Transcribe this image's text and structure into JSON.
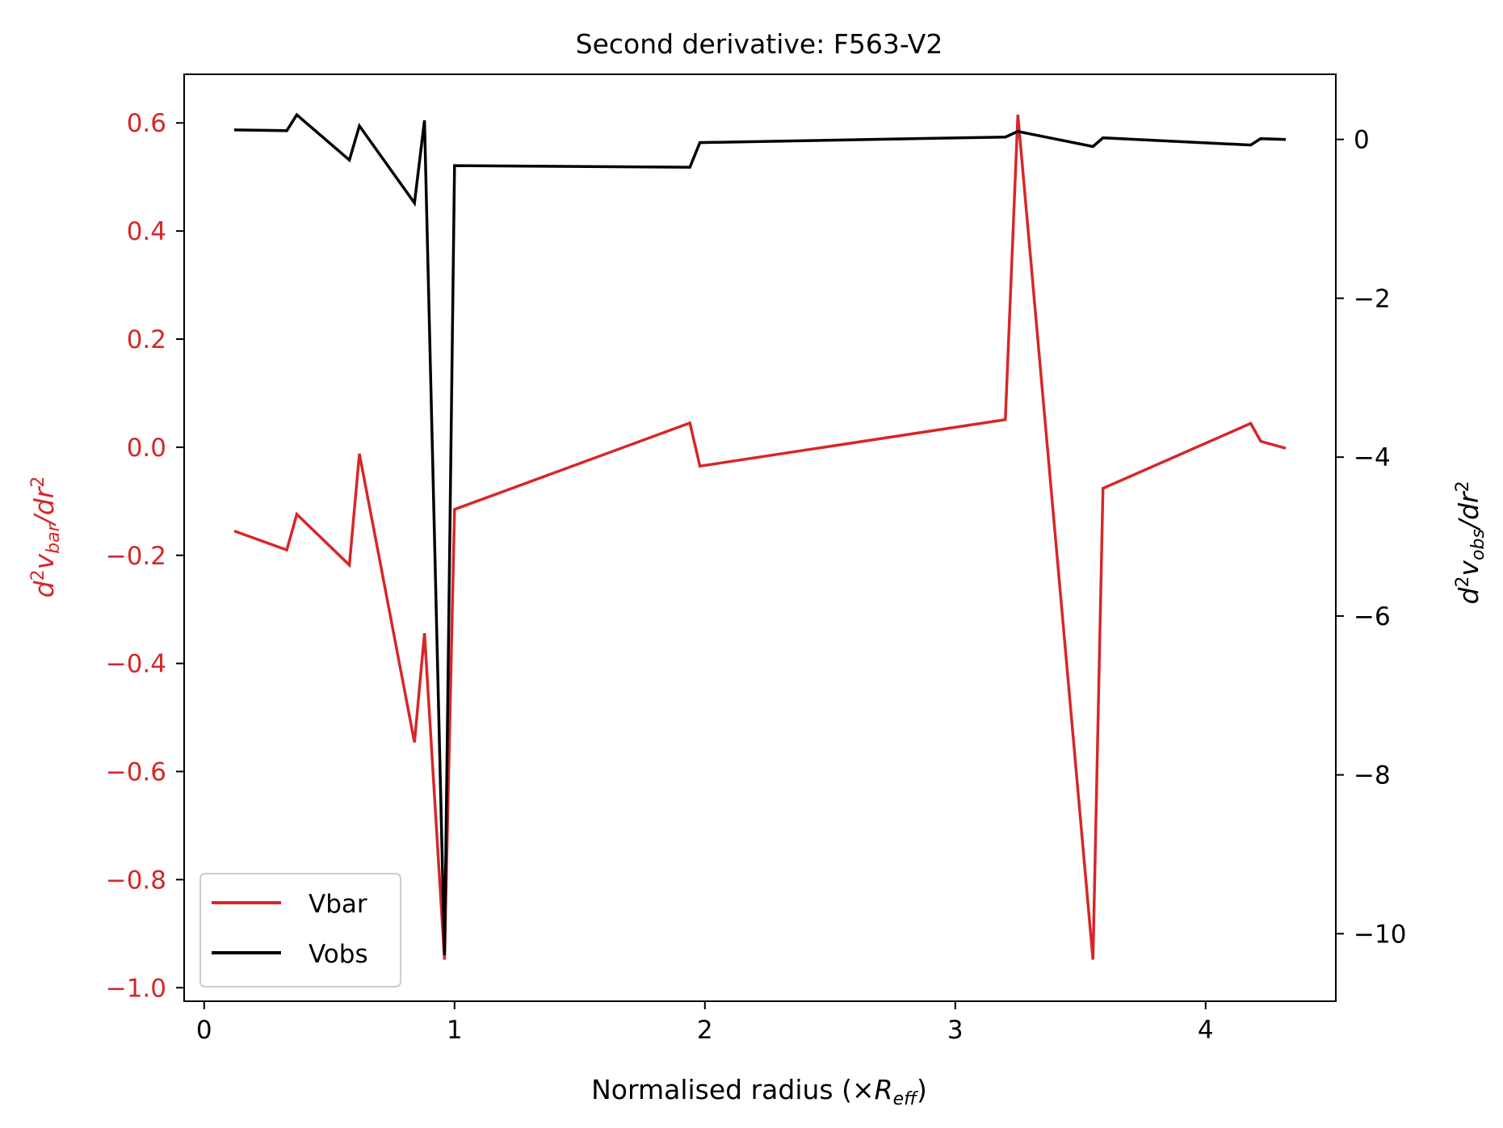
{
  "chart_data": {
    "type": "line",
    "title": "Second derivative: F563-V2",
    "xlabel": {
      "main": "Normalised radius (×",
      "var": "R",
      "sub": "eff",
      "close": ")"
    },
    "ylabel_left": {
      "d": "d",
      "exp": "2",
      "v": "v",
      "sub": "bar",
      "tail": "/dr",
      "exp2": "2"
    },
    "ylabel_right": {
      "d": "d",
      "exp": "2",
      "v": "v",
      "sub": "obs",
      "tail": "/dr",
      "exp2": "2"
    },
    "xlim": [
      -0.08,
      4.52
    ],
    "ylim_left": [
      -1.025,
      0.69
    ],
    "ylim_right": [
      -10.85,
      0.82
    ],
    "xticks": [
      0,
      1,
      2,
      3,
      4
    ],
    "xtick_labels": [
      "0",
      "1",
      "2",
      "3",
      "4"
    ],
    "yticks_left": [
      0.6,
      0.4,
      0.2,
      0.0,
      -0.2,
      -0.4,
      -0.6,
      -0.8,
      -1.0
    ],
    "ytick_labels_left": [
      "0.6",
      "0.4",
      "0.2",
      "0.0",
      "−0.2",
      "−0.4",
      "−0.6",
      "−0.8",
      "−1.0"
    ],
    "yticks_right": [
      0,
      -2,
      -4,
      -6,
      -8,
      -10
    ],
    "ytick_labels_right": [
      "0",
      "−2",
      "−4",
      "−6",
      "−8",
      "−10"
    ],
    "series": [
      {
        "name": "Vbar",
        "axis": "left",
        "color": "#d62728",
        "x": [
          0.12,
          0.33,
          0.37,
          0.58,
          0.62,
          0.84,
          0.88,
          0.96,
          1.0,
          1.94,
          1.98,
          3.2,
          3.25,
          3.55,
          3.59,
          4.18,
          4.22,
          4.32
        ],
        "values": [
          -0.155,
          -0.19,
          -0.124,
          -0.218,
          -0.012,
          -0.546,
          -0.344,
          -0.948,
          -0.115,
          0.045,
          -0.035,
          0.051,
          0.615,
          -0.948,
          -0.076,
          0.044,
          0.011,
          -0.002
        ]
      },
      {
        "name": "Vobs",
        "axis": "right",
        "color": "#000000",
        "x": [
          0.12,
          0.33,
          0.37,
          0.58,
          0.62,
          0.84,
          0.88,
          0.96,
          1.0,
          1.94,
          1.98,
          3.2,
          3.25,
          3.55,
          3.59,
          4.18,
          4.22,
          4.32
        ],
        "values": [
          0.12,
          0.11,
          0.31,
          -0.26,
          0.17,
          -0.8,
          0.24,
          -10.27,
          -0.33,
          -0.35,
          -0.04,
          0.03,
          0.1,
          -0.09,
          0.02,
          -0.07,
          0.01,
          0.0
        ]
      }
    ],
    "legend_position": "lower-left"
  }
}
